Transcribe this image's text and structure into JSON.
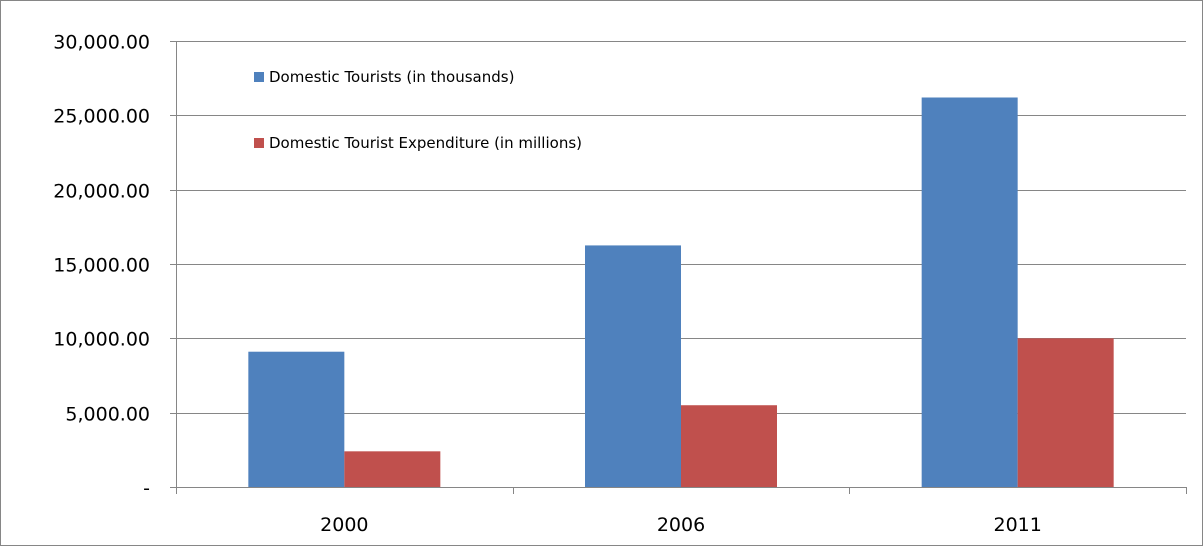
{
  "chart_data": {
    "type": "bar",
    "title": "",
    "xlabel": "",
    "ylabel": "",
    "categories": [
      "2000",
      "2006",
      "2011"
    ],
    "series": [
      {
        "name": "Domestic Tourists (in thousands)",
        "color": "#4F81BD",
        "values": [
          9100,
          16250,
          26200
        ]
      },
      {
        "name": "Domestic Tourist Expenditure (in millions)",
        "color": "#C0504D",
        "values": [
          2400,
          5500,
          10000
        ]
      }
    ],
    "ylim": [
      0,
      30000
    ],
    "y_ticks": [
      {
        "value": 0,
        "label": "-"
      },
      {
        "value": 5000,
        "label": "5,000.00"
      },
      {
        "value": 10000,
        "label": "10,000.00"
      },
      {
        "value": 15000,
        "label": "15,000.00"
      },
      {
        "value": 20000,
        "label": "20,000.00"
      },
      {
        "value": 25000,
        "label": "25,000.00"
      },
      {
        "value": 30000,
        "label": "30,000.00"
      }
    ],
    "grid": true,
    "gridline_color": "#868686",
    "legend_position": "top-left"
  }
}
